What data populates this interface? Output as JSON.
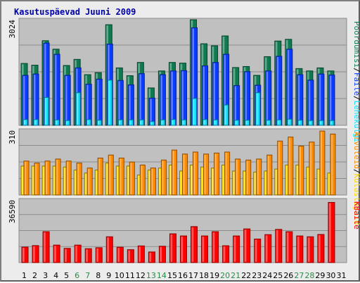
{
  "chart_data": {
    "title": "Kasutuspäevad Juuni 2009",
    "days": [
      "1",
      "2",
      "3",
      "4",
      "5",
      "6",
      "7",
      "8",
      "9",
      "10",
      "11",
      "12",
      "13",
      "14",
      "15",
      "16",
      "17",
      "18",
      "19",
      "20",
      "21",
      "22",
      "23",
      "24",
      "25",
      "26",
      "27",
      "28",
      "29",
      "30",
      "31"
    ],
    "weekend_days": [
      "6",
      "7",
      "13",
      "14",
      "20",
      "21",
      "27",
      "28"
    ],
    "colors": {
      "unique_visitors": "#ffd700",
      "visits": "#ff8800",
      "pages": "#00e0ff",
      "hits": "#0040ff",
      "bandwidth": "#ff0000",
      "weekend_label": "#2a8a4a",
      "weekday_label": "#000000",
      "bandwidth_legend": "#ff0000"
    },
    "panels": [
      {
        "type": "bar",
        "ymax_label": "3024",
        "ymax": 3024,
        "series": [
          {
            "name": "Pöördumisi",
            "color": "#0f7a50",
            "values": [
              1820,
              1770,
              2490,
              2240,
              1760,
              1940,
              1490,
              1550,
              2960,
              1690,
              1460,
              1850,
              1100,
              1600,
              1850,
              1830,
              3210,
              2400,
              2340,
              2630,
              1700,
              1730,
              1470,
              2020,
              2480,
              2530,
              1670,
              1600,
              1690,
              1600,
              0
            ]
          },
          {
            "name": "Faile",
            "color": "#0a3cff",
            "values": [
              1470,
              1510,
              2420,
              2090,
              1470,
              1690,
              1210,
              1360,
              2390,
              1320,
              1190,
              1520,
              800,
              1490,
              1600,
              1610,
              2870,
              1750,
              1850,
              2090,
              1170,
              1580,
              1180,
              1600,
              2030,
              2240,
              1490,
              1330,
              1510,
              1480,
              0
            ]
          },
          {
            "name": "Lehekülgi",
            "color": "#10e0ff",
            "values": [
              170,
              170,
              820,
              160,
              140,
              960,
              170,
              150,
              1330,
              160,
              160,
              160,
              110,
              160,
              170,
              160,
              790,
              170,
              160,
              600,
              150,
              150,
              960,
              150,
              160,
              180,
              150,
              140,
              140,
              140,
              0
            ]
          }
        ],
        "legend": [
          {
            "text": "Pöördumisi",
            "color": "#0f7a50"
          },
          {
            "text": "Faile",
            "color": "#0a3cff"
          },
          {
            "text": "Lehekülgi",
            "color": "#10e0ff"
          }
        ]
      },
      {
        "type": "bar",
        "ymax_label": "310",
        "ymax": 310,
        "series": [
          {
            "name": "Külastajaid",
            "color": "#ffd700",
            "values": [
              145,
              145,
              145,
              145,
              140,
              125,
              110,
              125,
              160,
              145,
              145,
              100,
              125,
              135,
              150,
              120,
              150,
              140,
              135,
              150,
              120,
              120,
              115,
              120,
              130,
              150,
              150,
              140,
              130,
              110,
              0
            ]
          },
          {
            "name": "Arvuteid",
            "color": "#ff8c00",
            "values": [
              170,
              160,
              170,
              180,
              170,
              160,
              135,
              185,
              200,
              185,
              165,
              150,
              135,
              175,
              225,
              205,
              215,
              205,
              210,
              215,
              180,
              175,
              180,
              200,
              270,
              290,
              245,
              265,
              320,
              305,
              0
            ]
          }
        ],
        "legend": [
          {
            "text": "Arvuteid",
            "color": "#ff8c00"
          },
          {
            "text": "/",
            "color": "#000000"
          },
          {
            "text": "Külastajaid",
            "color": "#ffd700"
          }
        ]
      },
      {
        "type": "bar",
        "ymax_label": "36590",
        "ymax": 36590,
        "series": [
          {
            "name": "KBaite",
            "color": "#ff0000",
            "values": [
              9500,
              10400,
              18900,
              10700,
              8700,
              10700,
              8500,
              9100,
              15800,
              9400,
              7900,
              10200,
              6500,
              10000,
              17600,
              16300,
              22000,
              16300,
              18900,
              10300,
              16300,
              20600,
              14400,
              17100,
              20300,
              18900,
              16300,
              15800,
              17200,
              36800,
              0
            ]
          }
        ],
        "legend": [
          {
            "text": "KBaite",
            "color": "#ff0000"
          }
        ]
      }
    ]
  }
}
